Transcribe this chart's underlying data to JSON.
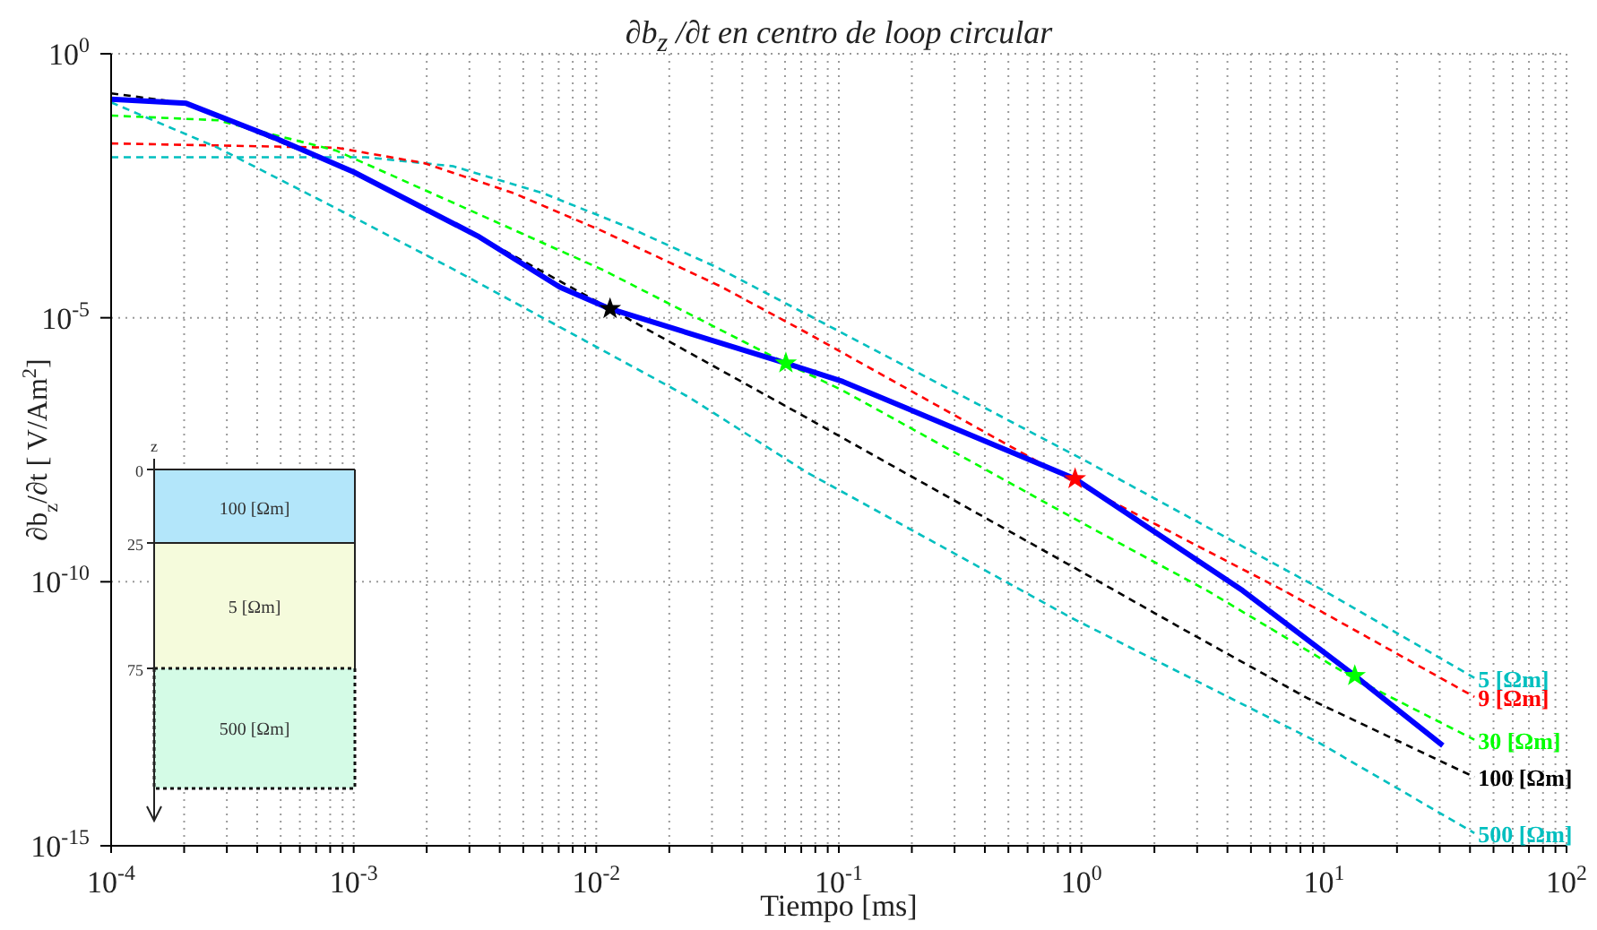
{
  "chart_data": {
    "type": "line",
    "title": "∂b$_{z}$ /∂t en centro de loop circular",
    "xlabel": "Tiempo [ms]",
    "ylabel": "∂b$_{z}$/∂t [ V/Am$^{2}$]",
    "log": "xy",
    "grid": true,
    "xlim": [
      0.0001,
      100
    ],
    "ylim": [
      1e-15,
      1
    ],
    "xticks": [
      {
        "value": 0.0001,
        "label": "10$^{-4}$"
      },
      {
        "value": 0.0002,
        "label": null
      },
      {
        "value": 0.0003,
        "label": null
      },
      {
        "value": 0.0004,
        "label": null
      },
      {
        "value": 0.0005,
        "label": null
      },
      {
        "value": 0.0006,
        "label": null
      },
      {
        "value": 0.0007,
        "label": null
      },
      {
        "value": 0.0008,
        "label": null
      },
      {
        "value": 0.0009,
        "label": null
      },
      {
        "value": 0.001,
        "label": "10$^{-3}$"
      },
      {
        "value": 0.002,
        "label": null
      },
      {
        "value": 0.003,
        "label": null
      },
      {
        "value": 0.004,
        "label": null
      },
      {
        "value": 0.005,
        "label": null
      },
      {
        "value": 0.006,
        "label": null
      },
      {
        "value": 0.007,
        "label": null
      },
      {
        "value": 0.008,
        "label": null
      },
      {
        "value": 0.009,
        "label": null
      },
      {
        "value": 0.01,
        "label": "10$^{-2}$"
      },
      {
        "value": 0.02,
        "label": null
      },
      {
        "value": 0.03,
        "label": null
      },
      {
        "value": 0.04,
        "label": null
      },
      {
        "value": 0.05,
        "label": null
      },
      {
        "value": 0.06,
        "label": null
      },
      {
        "value": 0.07,
        "label": null
      },
      {
        "value": 0.08,
        "label": null
      },
      {
        "value": 0.09,
        "label": null
      },
      {
        "value": 0.1,
        "label": "10$^{-1}$"
      },
      {
        "value": 0.2,
        "label": null
      },
      {
        "value": 0.3,
        "label": null
      },
      {
        "value": 0.4,
        "label": null
      },
      {
        "value": 0.5,
        "label": null
      },
      {
        "value": 0.6,
        "label": null
      },
      {
        "value": 0.7,
        "label": null
      },
      {
        "value": 0.8,
        "label": null
      },
      {
        "value": 0.9,
        "label": null
      },
      {
        "value": 1,
        "label": "10$^{0}$"
      },
      {
        "value": 2,
        "label": null
      },
      {
        "value": 3,
        "label": null
      },
      {
        "value": 4,
        "label": null
      },
      {
        "value": 5,
        "label": null
      },
      {
        "value": 6,
        "label": null
      },
      {
        "value": 7,
        "label": null
      },
      {
        "value": 8,
        "label": null
      },
      {
        "value": 9,
        "label": null
      },
      {
        "value": 10,
        "label": "10$^{1}$"
      },
      {
        "value": 20,
        "label": null
      },
      {
        "value": 30,
        "label": null
      },
      {
        "value": 40,
        "label": null
      },
      {
        "value": 50,
        "label": null
      },
      {
        "value": 60,
        "label": null
      },
      {
        "value": 70,
        "label": null
      },
      {
        "value": 80,
        "label": null
      },
      {
        "value": 90,
        "label": null
      },
      {
        "value": 100,
        "label": "10$^{2}$"
      }
    ],
    "yticks": [
      {
        "value": 1e-15,
        "label": "10$^{-15}$"
      },
      {
        "value": 1e-10,
        "label": "10$^{-10}$"
      },
      {
        "value": 1e-05,
        "label": "10$^{-5}$"
      },
      {
        "value": 1,
        "label": "10$^{0}$"
      }
    ],
    "series": [
      {
        "name": "5 [Ωm]",
        "color": "#00bfbf",
        "line_style": "dashed",
        "x": [
          0.0001,
          0.00112,
          0.00257,
          0.00603,
          0.0138,
          0.0316,
          0.0741,
          1.03,
          10,
          41.7
        ],
        "values": [
          0.011,
          0.011,
          0.00741,
          0.00229,
          0.000501,
          8.91e-05,
          1.15e-05,
          2e-08,
          6.76e-11,
          1.51e-12
        ]
      },
      {
        "name": "9 [Ωm]",
        "color": "#ff0000",
        "line_style": "dashed",
        "x": [
          0.0001,
          0.000851,
          0.00195,
          0.00457,
          0.0105,
          0.0324,
          0.0741,
          0.942,
          6.85,
          41.7
        ],
        "values": [
          0.02,
          0.0166,
          0.00851,
          0.00229,
          0.000447,
          3.98e-05,
          5.13e-06,
          7.59e-09,
          6.76e-11,
          6.61e-13
        ]
      },
      {
        "name": "30 [Ωm]",
        "color": "#00ff00",
        "line_style": "dashed",
        "x": [
          0.0001,
          0.000275,
          0.000851,
          0.00257,
          0.0105,
          0.0605,
          0.104,
          1.03,
          3.31,
          13.4,
          41.7
        ],
        "values": [
          0.0676,
          0.055,
          0.0145,
          0.00151,
          8.32e-05,
          1.38e-06,
          4.17e-07,
          1.23e-09,
          6.76e-11,
          1.45e-12,
          1.02e-13
        ]
      },
      {
        "name": "100 [Ωm]",
        "color": "#000000",
        "line_style": "dashed",
        "x": [
          0.0001,
          0.000204,
          0.001,
          0.00324,
          0.0114,
          0.0741,
          0.916,
          2.63,
          8.51,
          41.7
        ],
        "values": [
          0.178,
          0.115,
          0.00575,
          0.000355,
          1.48e-05,
          1.26e-07,
          1.95e-10,
          1.26e-11,
          6.31e-13,
          2e-14
        ]
      },
      {
        "name": "500 [Ωm]",
        "color": "#00bfbf",
        "line_style": "dashed",
        "x": [
          0.0001,
          0.000275,
          0.000851,
          0.00257,
          0.00794,
          0.024,
          0.0741,
          0.916,
          9.55,
          41.7
        ],
        "values": [
          0.12,
          0.0166,
          0.00117,
          8.32e-05,
          5.01e-06,
          3.16e-07,
          1.17e-08,
          2.04e-11,
          8.91e-14,
          1.74e-15
        ]
      },
      {
        "color": "#0000ff",
        "line_style": "solid",
        "x": [
          0.0001,
          0.000204,
          0.000483,
          0.001,
          0.00324,
          0.00708,
          0.0114,
          0.0605,
          0.104,
          0.942,
          4.63,
          13.4,
          30.9
        ],
        "values": [
          0.138,
          0.115,
          0.0245,
          0.00575,
          0.000355,
          3.8e-05,
          1.48e-05,
          1.38e-06,
          6.17e-07,
          8.91e-09,
          6.76e-11,
          1.66e-12,
          7.94e-14
        ]
      },
      {
        "type": "scatter",
        "marker": "star",
        "x": [
          0.0114,
          0.0605,
          0.942,
          13.4
        ],
        "values": [
          1.48e-05,
          1.38e-06,
          8.91e-09,
          1.66e-12
        ],
        "colors": [
          "#000000",
          "#00ff00",
          "#ff0000",
          "#00ff00"
        ]
      }
    ],
    "annotations": [
      "z",
      "0",
      "25",
      "75",
      "100 [Ωm]",
      "5 [Ωm]",
      "500 [Ωm]"
    ]
  }
}
